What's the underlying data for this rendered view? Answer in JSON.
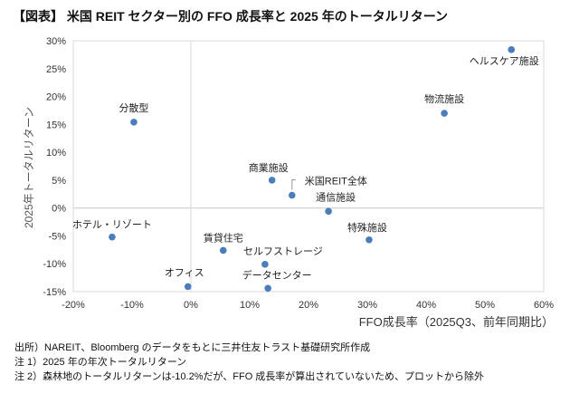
{
  "title": "【図表】 米国 REIT セクター別の FFO 成長率と 2025 年のトータルリターン",
  "notes": [
    "出所）NAREIT、Bloomberg のデータをもとに三井住友トラスト基礎研究所作成",
    "注 1）2025 年の年次トータルリターン",
    "注 2）森林地のトータルリターンは-10.2%だが、FFO 成長率が算出されていないため、プロットから除外"
  ],
  "chart_data": {
    "type": "scatter",
    "xlabel": "FFO成長率（2025Q3、前年同期比）",
    "ylabel": "2025年トータルリターン",
    "xlim": [
      -20,
      60
    ],
    "ylim": [
      -15,
      30
    ],
    "x_ticks": [
      "-20%",
      "-10%",
      "0%",
      "10%",
      "20%",
      "30%",
      "40%",
      "50%",
      "60%"
    ],
    "y_ticks": [
      "30%",
      "25%",
      "20%",
      "15%",
      "10%",
      "5%",
      "0%",
      "-5%",
      "-10%",
      "-15%"
    ],
    "grid": "zero lines only",
    "point_color": "#4a7ebb",
    "points": [
      {
        "label": "ヘルスケア施設",
        "x": 54.5,
        "y": 28.4
      },
      {
        "label": "物流施設",
        "x": 43.1,
        "y": 17.0
      },
      {
        "label": "分散型",
        "x": -9.7,
        "y": 15.4
      },
      {
        "label": "商業施設",
        "x": 13.8,
        "y": 5.0
      },
      {
        "label": "米国REIT全体",
        "x": 17.2,
        "y": 2.3
      },
      {
        "label": "通信施設",
        "x": 23.4,
        "y": -0.6
      },
      {
        "label": "ホテル・リゾート",
        "x": -13.4,
        "y": -5.2
      },
      {
        "label": "特殊施設",
        "x": 30.3,
        "y": -5.7
      },
      {
        "label": "賃貸住宅",
        "x": 5.5,
        "y": -7.6
      },
      {
        "label": "セルフストレージ",
        "x": 12.6,
        "y": -10.1
      },
      {
        "label": "オフィス",
        "x": -0.5,
        "y": -14.1
      },
      {
        "label": "データセンター",
        "x": 13.1,
        "y": -14.4
      }
    ]
  }
}
